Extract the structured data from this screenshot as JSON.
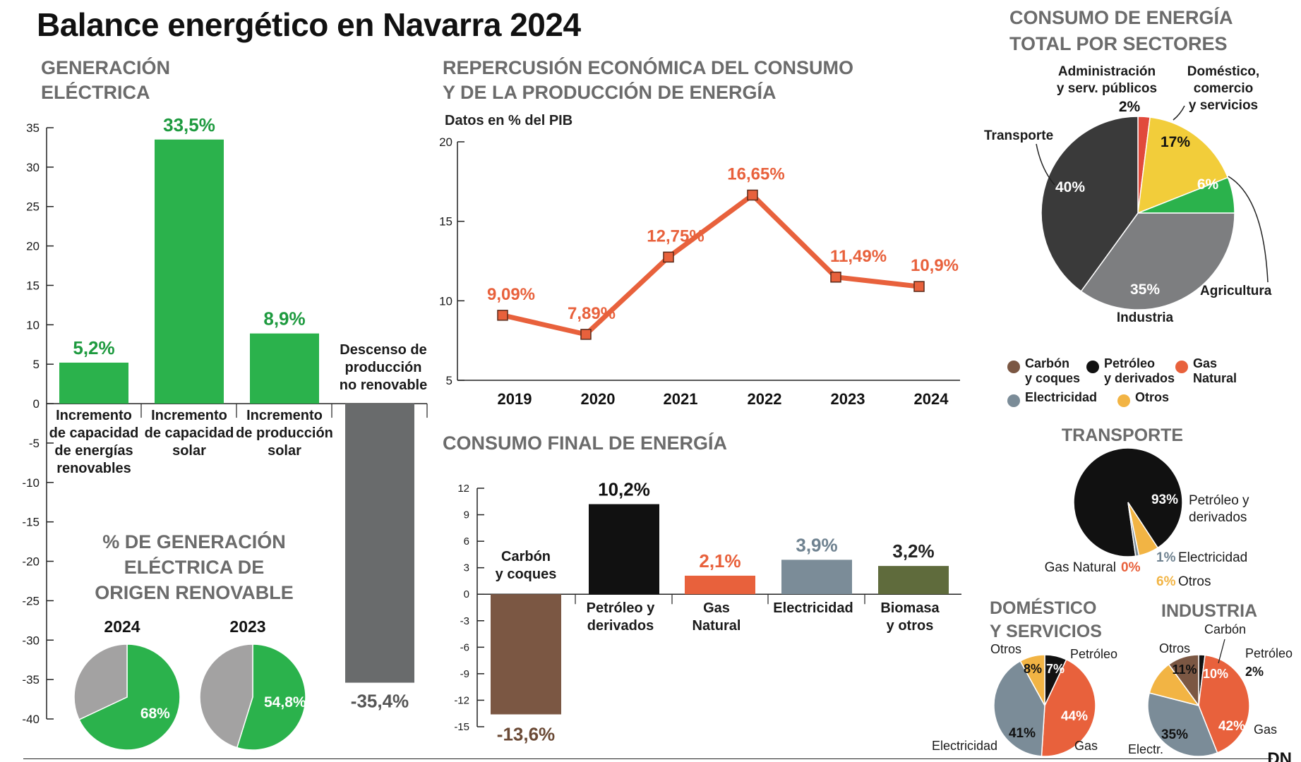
{
  "title": "Balance energético en Navarra 2024",
  "logo": "DN",
  "colors": {
    "green": "#2bb24c",
    "dark_green": "#1e9a3f",
    "orange": "#e8613c",
    "gray": "#696b6c",
    "light_gray": "#a3a2a2",
    "brown": "#7b5743",
    "steel": "#7b8c98",
    "olive": "#5f6b3c",
    "yellow": "#f2cd3a",
    "gold": "#f2b444",
    "black": "#111111",
    "charcoal": "#3a3a3a",
    "red": "#e14a3c",
    "mid_gray": "#7d7e80"
  },
  "generacion": {
    "title_lines": [
      "GENERACIÓN",
      "ELÉCTRICA"
    ],
    "chart_data": {
      "type": "bar",
      "ylim": [
        -40,
        35
      ],
      "yticks": [
        "35",
        "30",
        "25",
        "20",
        "15",
        "10",
        "5",
        "0",
        "-5",
        "-10",
        "-15",
        "-20",
        "-25",
        "-30",
        "-35",
        "-40"
      ],
      "ytick_values": [
        35,
        30,
        25,
        20,
        15,
        10,
        5,
        0,
        -5,
        -10,
        -15,
        -20,
        -25,
        -30,
        -35,
        -40
      ],
      "categories": [
        [
          "Incremento",
          "de capacidad",
          "de energías",
          "renovables"
        ],
        [
          "Incremento",
          "de capacidad",
          "solar"
        ],
        [
          "Incremento",
          "de producción",
          "solar"
        ],
        [
          "Descenso de",
          "producción",
          "no renovable"
        ]
      ],
      "values": [
        5.2,
        33.5,
        8.9,
        -35.4
      ],
      "value_labels": [
        "5,2%",
        "33,5%",
        "8,9%",
        "-35,4%"
      ]
    }
  },
  "renovable": {
    "title_lines": [
      "% DE GENERACIÓN",
      "ELÉCTRICA DE",
      "ORIGEN RENOVABLE"
    ],
    "chart_data": [
      {
        "type": "pie",
        "title": "2024",
        "values": [
          68,
          32
        ],
        "labels": [
          "68%",
          ""
        ]
      },
      {
        "type": "pie",
        "title": "2023",
        "values": [
          54.8,
          45.2
        ],
        "labels": [
          "54,8%",
          ""
        ]
      }
    ]
  },
  "repercusion": {
    "title_lines": [
      "REPERCUSIÓN ECONÓMICA DEL CONSUMO",
      "Y  DE LA PRODUCCIÓN DE ENERGÍA"
    ],
    "subtitle": "Datos en % del PIB",
    "chart_data": {
      "type": "line",
      "x": [
        "2019",
        "2020",
        "2021",
        "2022",
        "2023",
        "2024"
      ],
      "values": [
        9.09,
        7.89,
        12.75,
        16.65,
        11.49,
        10.9
      ],
      "value_labels": [
        "9,09%",
        "7,89%",
        "12,75%",
        "16,65%",
        "11,49%",
        "10,9%"
      ],
      "ylim": [
        5,
        20
      ],
      "yticks": [
        "20",
        "15",
        "10",
        "5"
      ],
      "ytick_values": [
        20,
        15,
        10,
        5
      ]
    }
  },
  "consumo_final": {
    "title": "CONSUMO FINAL DE ENERGÍA",
    "chart_data": {
      "type": "bar",
      "ylim": [
        -15,
        12
      ],
      "yticks": [
        "12",
        "9",
        "6",
        "3",
        "0",
        "-3",
        "-6",
        "-9",
        "-12",
        "-15"
      ],
      "ytick_values": [
        12,
        9,
        6,
        3,
        0,
        -3,
        -6,
        -9,
        -12,
        -15
      ],
      "categories": [
        [
          "Carbón",
          "y coques"
        ],
        [
          "Petróleo y",
          "derivados"
        ],
        [
          "Gas",
          "Natural"
        ],
        [
          "Electricidad"
        ],
        [
          "Biomasa",
          "y otros"
        ]
      ],
      "values": [
        -13.6,
        10.2,
        2.1,
        3.9,
        3.2
      ],
      "value_labels": [
        "-13,6%",
        "10,2%",
        "2,1%",
        "3,9%",
        "3,2%"
      ]
    }
  },
  "sectores": {
    "title_lines": [
      "CONSUMO DE ENERGÍA",
      "TOTAL POR SECTORES"
    ],
    "chart_data": {
      "type": "pie",
      "slices": [
        {
          "label": "Administración y serv. públicos",
          "label_lines": [
            "Administración",
            "y serv. públicos"
          ],
          "value": 2,
          "value_label": "2%"
        },
        {
          "label": "Doméstico, comercio y servicios",
          "label_lines": [
            "Doméstico,",
            "comercio",
            "y servicios"
          ],
          "value": 17,
          "value_label": "17%"
        },
        {
          "label": "Agricultura",
          "label_lines": [
            "Agricultura"
          ],
          "value": 6,
          "value_label": "6%"
        },
        {
          "label": "Industria",
          "label_lines": [
            "Industria"
          ],
          "value": 35,
          "value_label": "35%"
        },
        {
          "label": "Transporte",
          "label_lines": [
            "Transporte"
          ],
          "value": 40,
          "value_label": "40%"
        }
      ]
    }
  },
  "legend": {
    "items": [
      {
        "lines": [
          "Carbón",
          "y coques"
        ],
        "color_key": "brown"
      },
      {
        "lines": [
          "Petróleo",
          "y derivados"
        ],
        "color_key": "black"
      },
      {
        "lines": [
          "Gas",
          "Natural"
        ],
        "color_key": "orange"
      },
      {
        "lines": [
          "Electricidad"
        ],
        "color_key": "steel"
      },
      {
        "lines": [
          "Otros"
        ],
        "color_key": "gold"
      }
    ]
  },
  "transporte": {
    "title": "TRANSPORTE",
    "chart_data": {
      "type": "pie",
      "slices": [
        {
          "name": "Petróleo y derivados",
          "label_lines": [
            "Petróleo y",
            "derivados"
          ],
          "value": 93,
          "value_label": "93%"
        },
        {
          "name": "Otros",
          "label_lines": [
            "Otros"
          ],
          "value": 6,
          "value_label": "6%"
        },
        {
          "name": "Electricidad",
          "label_lines": [
            "Electricidad"
          ],
          "value": 1,
          "value_label": "1%"
        },
        {
          "name": "Gas Natural",
          "label_lines": [
            "Gas Natural"
          ],
          "value": 0,
          "value_label": "0%"
        }
      ]
    }
  },
  "domestico": {
    "title_lines": [
      "DOMÉSTICO",
      "Y SERVICIOS"
    ],
    "chart_data": {
      "type": "pie",
      "slices": [
        {
          "name": "Petróleo",
          "value": 7,
          "value_label": "7%"
        },
        {
          "name": "Gas",
          "value": 44,
          "value_label": "44%"
        },
        {
          "name": "Electricidad",
          "value": 41,
          "value_label": "41%"
        },
        {
          "name": "Otros",
          "value": 8,
          "value_label": "8%"
        }
      ]
    }
  },
  "industria": {
    "title": "INDUSTRIA",
    "chart_data": {
      "type": "pie",
      "slices": [
        {
          "name": "Petróleo",
          "value": 2,
          "value_label": "2%"
        },
        {
          "name": "Gas",
          "value": 42,
          "value_label": "42%"
        },
        {
          "name": "Electr.",
          "value": 35,
          "value_label": "35%"
        },
        {
          "name": "Otros",
          "value": 11,
          "value_label": "11%"
        },
        {
          "name": "Carbón",
          "value": 10,
          "value_label": "10%"
        }
      ]
    }
  }
}
